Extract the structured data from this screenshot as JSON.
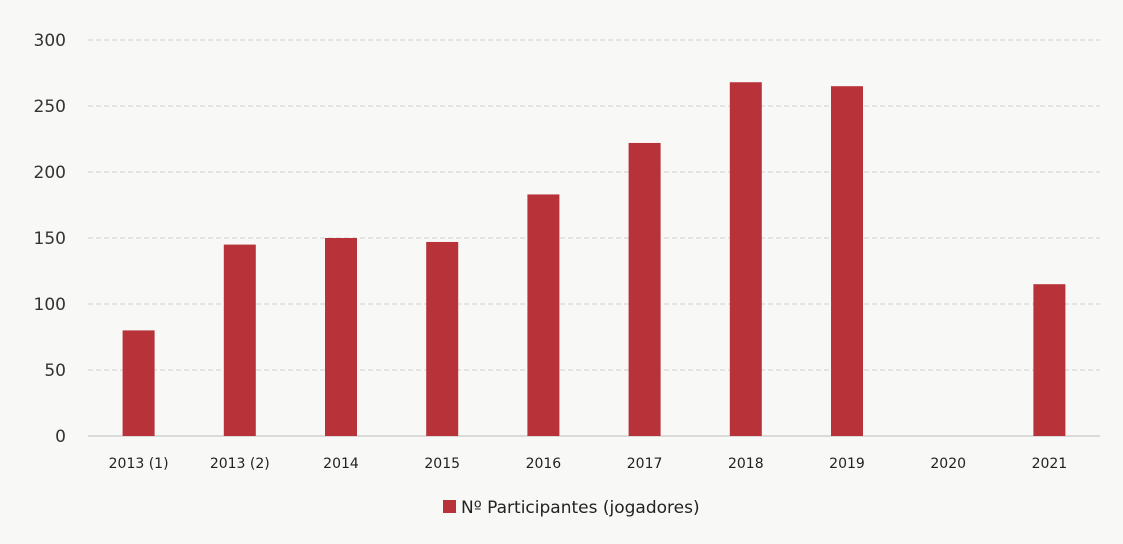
{
  "chart_data": {
    "type": "bar",
    "categories": [
      "2013 (1)",
      "2013 (2)",
      "2014",
      "2015",
      "2016",
      "2017",
      "2018",
      "2019",
      "2020",
      "2021"
    ],
    "series": [
      {
        "name": "Nº Participantes (jogadores)",
        "color": "#b8323a",
        "values": [
          80,
          145,
          150,
          147,
          183,
          222,
          268,
          265,
          0,
          115
        ]
      }
    ],
    "ylim": [
      0,
      300
    ],
    "yticks": [
      0,
      50,
      100,
      150,
      200,
      250,
      300
    ],
    "grid": true,
    "legend_position": "bottom-center"
  }
}
